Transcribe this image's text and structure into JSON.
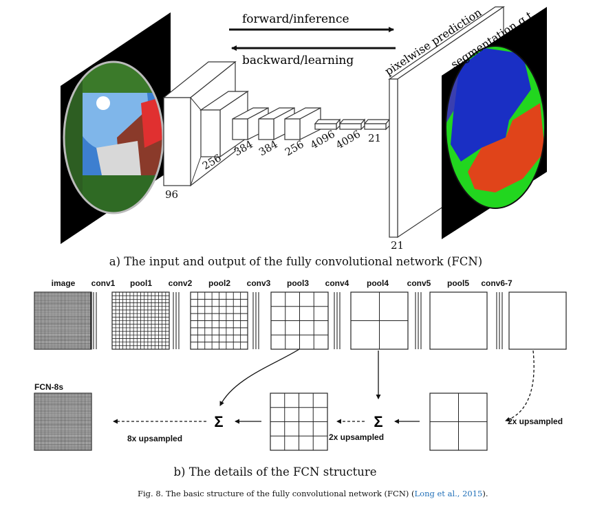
{
  "part_a": {
    "arrow_forward": "forward/inference",
    "arrow_backward": "backward/learning",
    "label_prediction": "pixelwise prediction",
    "label_gt": "segmentation g.t.",
    "dims": [
      "96",
      "256",
      "384",
      "384",
      "256",
      "4096",
      "4096",
      "21"
    ],
    "output_dim": "21",
    "caption": "a) The input and output of the fully convolutional network (FCN)"
  },
  "part_b": {
    "layers": [
      "image",
      "conv1",
      "pool1",
      "conv2",
      "pool2",
      "conv3",
      "pool3",
      "conv4",
      "pool4",
      "conv5",
      "pool5",
      "conv6-7"
    ],
    "fcn_label": "FCN-8s",
    "sigma": "Σ",
    "upsample_8x": "8x upsampled",
    "upsample_2x_left": "2x upsampled",
    "upsample_2x_right": "2x upsampled",
    "caption": "b) The details of the FCN structure"
  },
  "figure_caption": {
    "prefix": "Fig. 8.  The basic structure of the fully convolutional network (FCN) (",
    "citation": "Long et al., 2015",
    "suffix": ")."
  },
  "colors": {
    "seg_blue": "#1a2fc4",
    "seg_green": "#22d61f",
    "seg_red": "#e0441a",
    "sky_blue": "#3d7fd0",
    "link": "#1f6fb8"
  }
}
